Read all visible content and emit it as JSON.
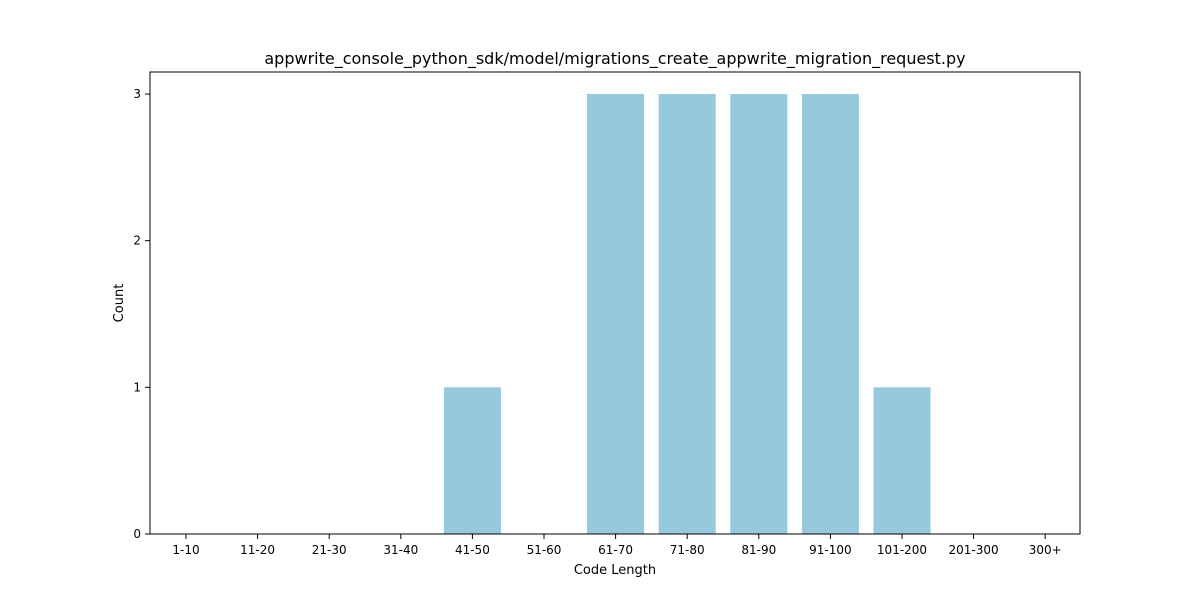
{
  "chart_data": {
    "type": "bar",
    "title": "appwrite_console_python_sdk/model/migrations_create_appwrite_migration_request.py",
    "xlabel": "Code Length",
    "ylabel": "Count",
    "categories": [
      "1-10",
      "11-20",
      "21-30",
      "31-40",
      "41-50",
      "51-60",
      "61-70",
      "71-80",
      "81-90",
      "91-100",
      "101-200",
      "201-300",
      "300+"
    ],
    "values": [
      0,
      0,
      0,
      0,
      1,
      0,
      3,
      3,
      3,
      3,
      1,
      0,
      0
    ],
    "ylim": [
      0,
      3.15
    ],
    "yticks": [
      0,
      1,
      2,
      3
    ],
    "grid": false,
    "bar_color": "#96c9dc"
  }
}
